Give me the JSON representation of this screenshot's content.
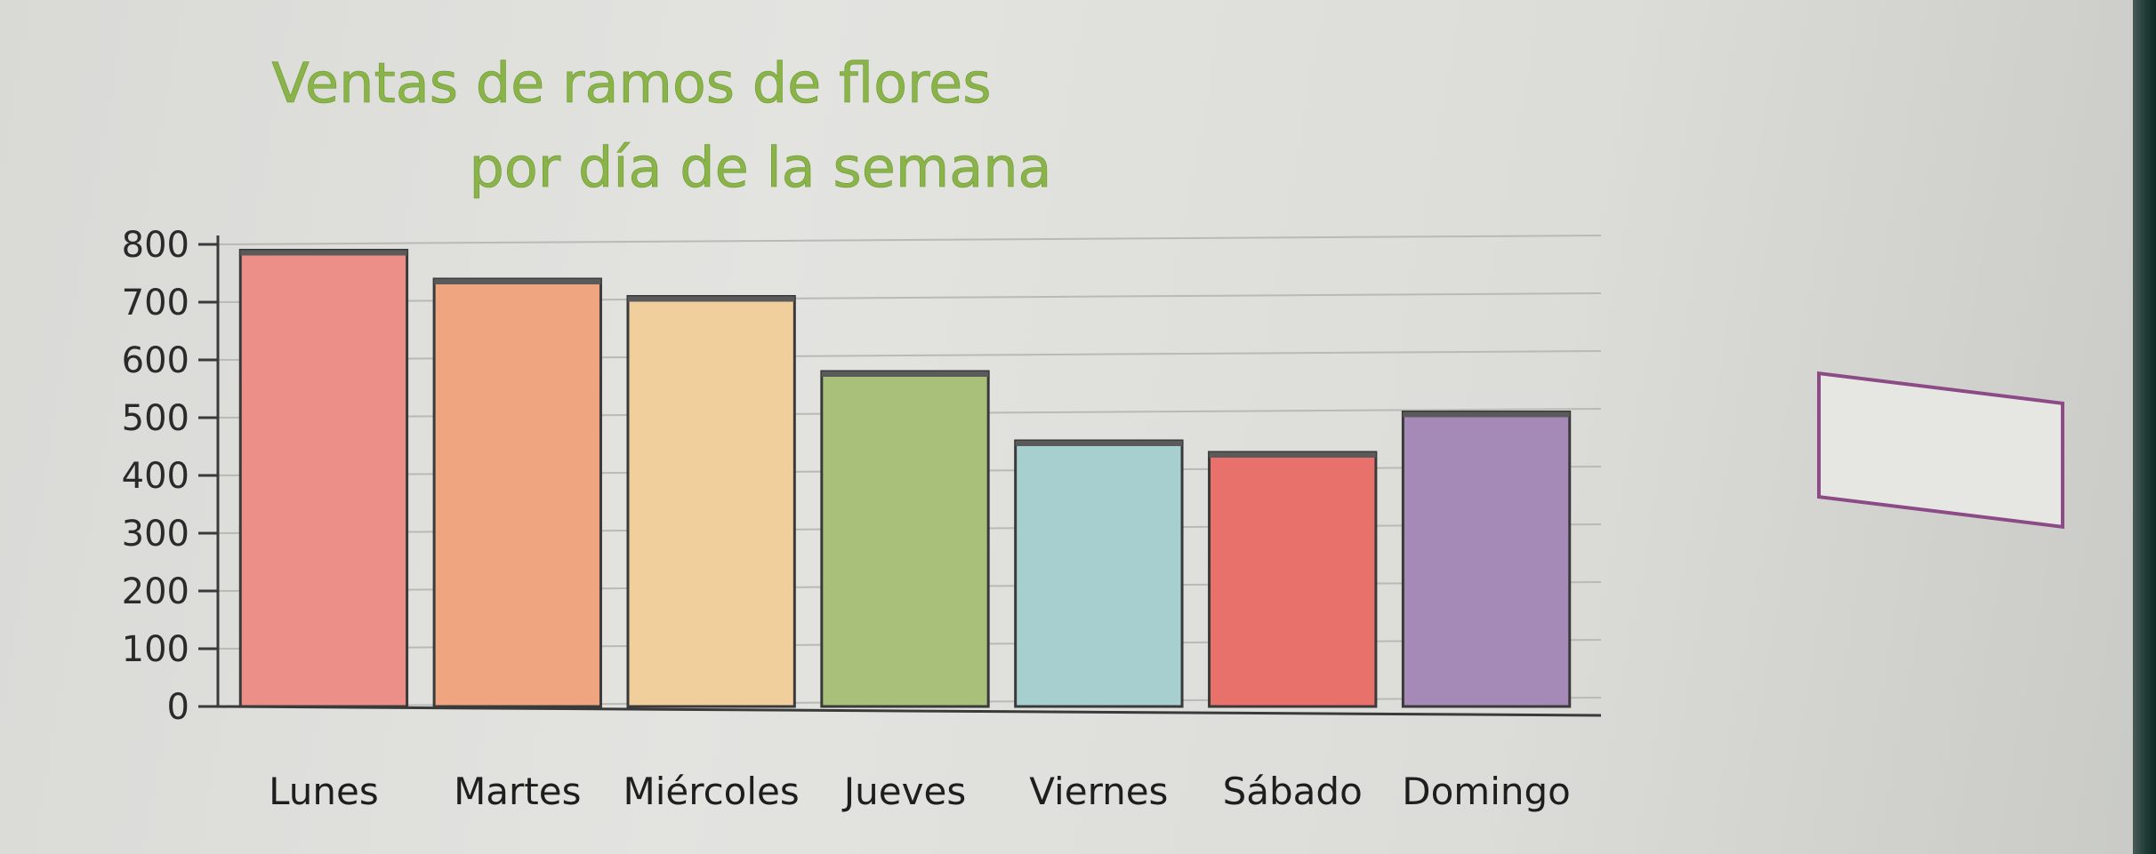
{
  "chart_data": {
    "type": "bar",
    "title": "Ventas de ramos de flores",
    "subtitle": "por día de la semana",
    "xlabel": "",
    "ylabel": "",
    "categories": [
      "Lunes",
      "Martes",
      "Miércoles",
      "Jueves",
      "Viernes",
      "Sábado",
      "Domingo"
    ],
    "values": [
      790,
      740,
      710,
      580,
      460,
      440,
      510
    ],
    "yticks": [
      "0",
      "100",
      "200",
      "300",
      "400",
      "500",
      "600",
      "700",
      "800"
    ],
    "ylim": [
      0,
      800
    ],
    "grid": true,
    "colors": [
      "#ec8f88",
      "#f0a581",
      "#f1cf9c",
      "#a9c07a",
      "#a8cfcf",
      "#e9716b",
      "#a58ab8"
    ]
  }
}
